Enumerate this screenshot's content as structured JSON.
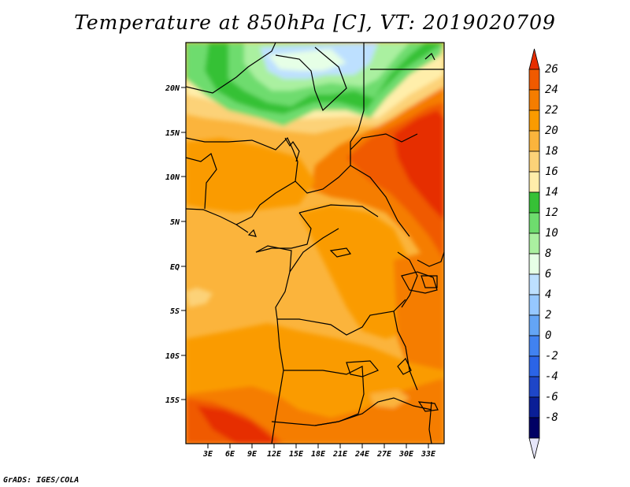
{
  "title": "Temperature at 850hPa [C], VT: 2019020709",
  "credit": "GrADS: IGES/COLA",
  "map": {
    "region": "Central Africa",
    "lon_range": [
      0,
      35
    ],
    "lat_range": [
      -20,
      25
    ],
    "lat_labels": [
      "20N",
      "15N",
      "10N",
      "5N",
      "EQ",
      "5S",
      "10S",
      "15S"
    ],
    "lon_labels": [
      "3E",
      "6E",
      "9E",
      "12E",
      "15E",
      "18E",
      "21E",
      "24E",
      "27E",
      "30E",
      "33E"
    ]
  },
  "colorbar": {
    "labels": [
      "26",
      "24",
      "22",
      "20",
      "18",
      "16",
      "14",
      "12",
      "10",
      "8",
      "6",
      "4",
      "2",
      "0",
      "-2",
      "-4",
      "-6",
      "-8"
    ],
    "colors": [
      "#e62d00",
      "#f05a00",
      "#f57d00",
      "#fa9b00",
      "#fbb43c",
      "#fcd278",
      "#ffeeaa",
      "#36c136",
      "#6edc6e",
      "#aaf0a0",
      "#e6ffe6",
      "#bde0ff",
      "#96c8ff",
      "#64a5f5",
      "#4182f0",
      "#2b64e6",
      "#1e46c8",
      "#0a1e96",
      "#000064",
      "#e6e6fa"
    ]
  }
}
